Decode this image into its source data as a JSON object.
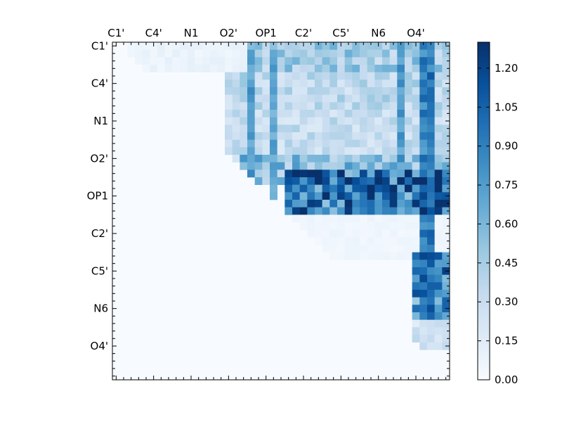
{
  "chart_data": {
    "type": "heatmap",
    "title": "",
    "xlabel": "",
    "ylabel": "",
    "size": 45,
    "x_tick_labels": [
      "C1'",
      "C4'",
      "N1",
      "O2'",
      "OP1",
      "C2'",
      "C5'",
      "N6",
      "O4'"
    ],
    "y_tick_labels": [
      "C1'",
      "C4'",
      "N1",
      "O2'",
      "OP1",
      "C2'",
      "C5'",
      "N6",
      "O4'"
    ],
    "label_positions": [
      0,
      5,
      10,
      15,
      20,
      25,
      30,
      35,
      40
    ],
    "colormap": "Blues",
    "value_range": [
      0,
      1.3
    ],
    "colorbar_ticks": [
      "0.00",
      "0.15",
      "0.30",
      "0.45",
      "0.60",
      "0.75",
      "0.90",
      "1.05",
      "1.20"
    ],
    "colorbar_tick_values": [
      0,
      0.15,
      0.3,
      0.45,
      0.6,
      0.75,
      0.9,
      1.05,
      1.2
    ],
    "upper_triangle_only": true,
    "row_bands": [
      {
        "rows": [
          0,
          3
        ],
        "cols": [
          2,
          44
        ],
        "base": 0.08
      },
      {
        "rows": [
          0,
          3
        ],
        "cols": [
          18,
          44
        ],
        "base": 0.45
      },
      {
        "rows": [
          4,
          8
        ],
        "cols": [
          15,
          44
        ],
        "base": 0.35
      },
      {
        "rows": [
          9,
          15
        ],
        "cols": [
          15,
          44
        ],
        "base": 0.3
      },
      {
        "rows": [
          15,
          18
        ],
        "cols": [
          17,
          44
        ],
        "base": 0.55
      },
      {
        "rows": [
          17,
          22
        ],
        "cols": [
          23,
          44
        ],
        "base": 0.95
      },
      {
        "rows": [
          23,
          28
        ],
        "cols": [
          23,
          44
        ],
        "base": 0.05
      },
      {
        "rows": [
          28,
          36
        ],
        "cols": [
          40,
          44
        ],
        "base": 0.85
      },
      {
        "rows": [
          36,
          40
        ],
        "cols": [
          40,
          44
        ],
        "base": 0.25
      }
    ],
    "highlight_columns": [
      {
        "col": 18,
        "rows": [
          1,
          20
        ],
        "value": 0.8
      },
      {
        "col": 21,
        "rows": [
          1,
          20
        ],
        "value": 0.75
      },
      {
        "col": 38,
        "rows": [
          0,
          22
        ],
        "value": 0.8
      },
      {
        "col": 41,
        "rows": [
          0,
          36
        ],
        "value": 0.95
      },
      {
        "col": 42,
        "rows": [
          0,
          36
        ],
        "value": 1.0
      },
      {
        "col": 43,
        "rows": [
          17,
          22
        ],
        "value": 1.25
      }
    ]
  }
}
